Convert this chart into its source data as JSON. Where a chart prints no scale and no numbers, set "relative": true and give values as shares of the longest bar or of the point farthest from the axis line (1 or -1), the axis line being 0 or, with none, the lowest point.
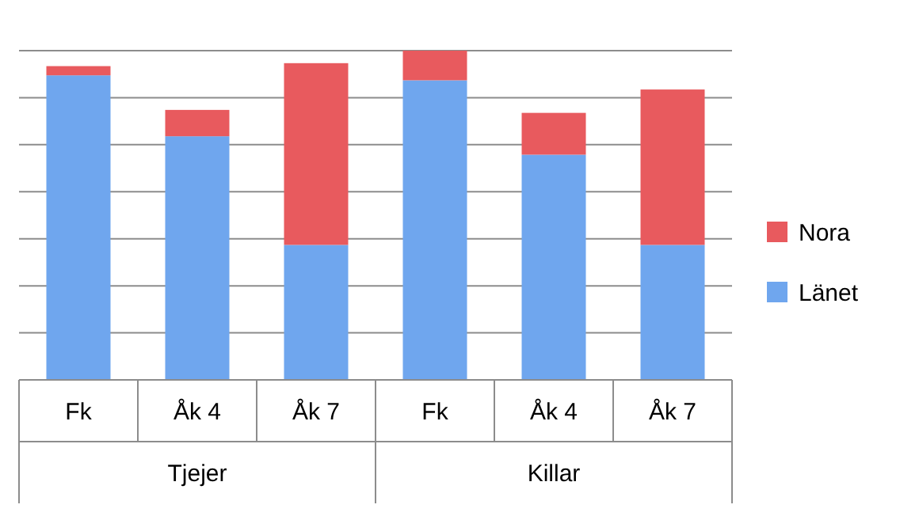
{
  "chart_data": {
    "type": "bar",
    "stacked": true,
    "relative": true,
    "grid": true,
    "legend": "right",
    "categories": [
      "Fk",
      "Åk 4",
      "Åk 7",
      "Fk",
      "Åk 4",
      "Åk 7"
    ],
    "series": [
      {
        "name": "Länet",
        "color": "#6fa6ee",
        "values": [
          0.925,
          0.74,
          0.41,
          0.91,
          0.684,
          0.41
        ]
      },
      {
        "name": "Nora",
        "color": "#e85a5e",
        "values": [
          0.028,
          0.08,
          0.552,
          0.09,
          0.127,
          0.472
        ]
      }
    ],
    "annotations": [
      "Tjejer",
      "Killar"
    ]
  }
}
